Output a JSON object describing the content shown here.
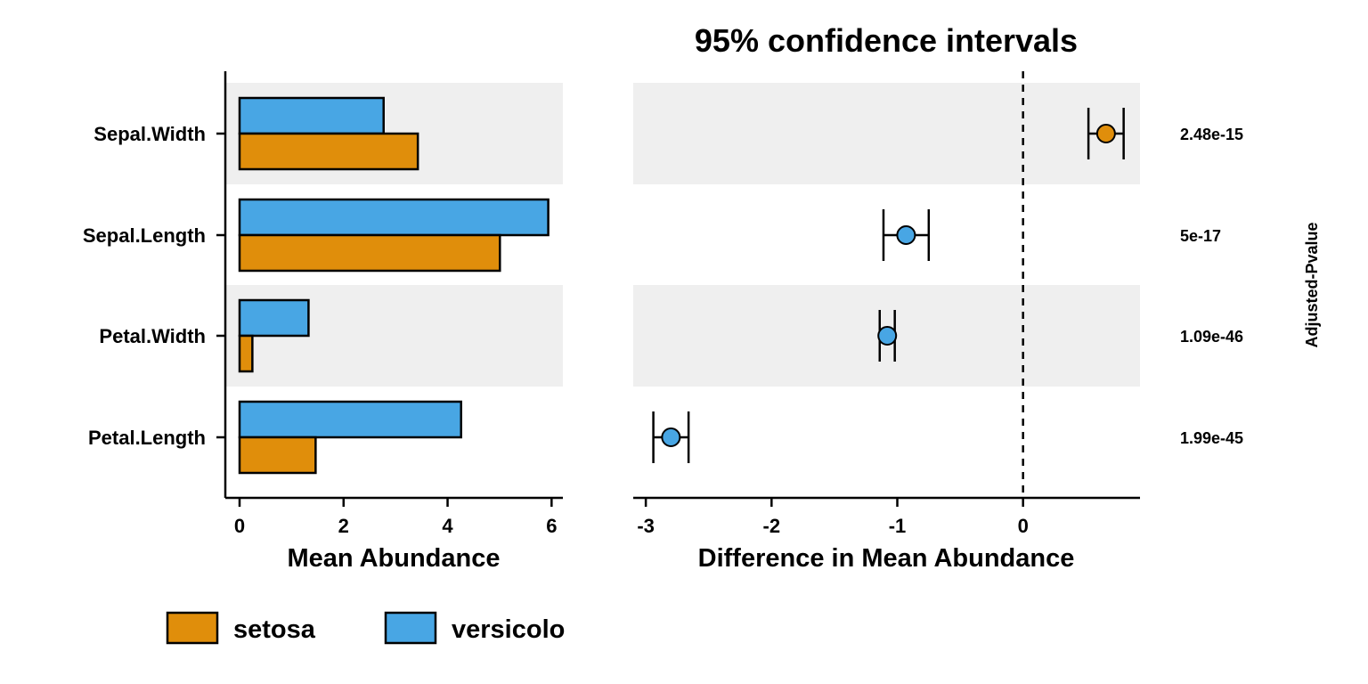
{
  "chart_data": {
    "type": "bar",
    "title": "95% confidence intervals",
    "categories": [
      "Petal.Length",
      "Petal.Width",
      "Sepal.Length",
      "Sepal.Width"
    ],
    "colors": {
      "setosa": "#E08E0B",
      "versicolo": "#48A6E4",
      "band": "#EFEFEF"
    },
    "bar_panel": {
      "xlabel": "Mean Abundance",
      "xlim": [
        0,
        6.2
      ],
      "ticks": [
        0,
        2,
        4,
        6
      ],
      "series": [
        {
          "name": "setosa",
          "values": [
            1.462,
            0.246,
            5.006,
            3.428
          ]
        },
        {
          "name": "versicolo",
          "values": [
            4.26,
            1.326,
            5.936,
            2.77
          ]
        }
      ]
    },
    "ci_panel": {
      "xlabel": "Difference in Mean Abundance",
      "xlim": [
        -3.1,
        0.93
      ],
      "ticks": [
        -3,
        -2,
        -1,
        0
      ],
      "points": [
        {
          "category": "Petal.Length",
          "estimate": -2.8,
          "lower": -2.94,
          "upper": -2.66,
          "group": "versicolo"
        },
        {
          "category": "Petal.Width",
          "estimate": -1.08,
          "lower": -1.14,
          "upper": -1.02,
          "group": "versicolo"
        },
        {
          "category": "Sepal.Length",
          "estimate": -0.93,
          "lower": -1.11,
          "upper": -0.75,
          "group": "versicolo"
        },
        {
          "category": "Sepal.Width",
          "estimate": 0.66,
          "lower": 0.52,
          "upper": 0.8,
          "group": "setosa"
        }
      ],
      "reference_line": 0
    },
    "pvalues": {
      "label": "Adjusted-Pvalue",
      "values": [
        "1.99e-45",
        "1.09e-46",
        "5e-17",
        "2.48e-15"
      ]
    },
    "legend": {
      "position": "bottom-left",
      "entries": [
        {
          "name": "setosa",
          "color": "#E08E0B"
        },
        {
          "name": "versicolo",
          "color": "#48A6E4"
        }
      ]
    }
  }
}
